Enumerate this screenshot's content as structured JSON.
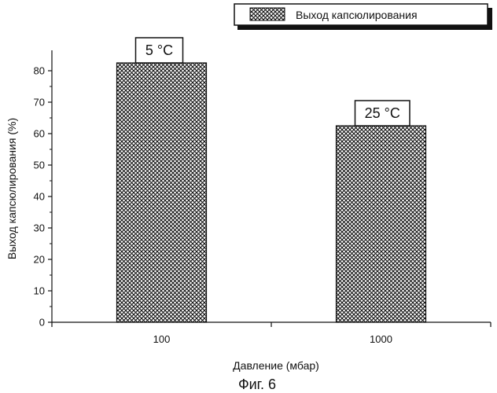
{
  "chart_data": {
    "type": "bar",
    "categories": [
      "100",
      "1000"
    ],
    "series": [
      {
        "name": "Выход капсюлирования",
        "values": [
          82.5,
          62.5
        ]
      }
    ],
    "bar_labels": [
      "5 °C",
      "25 °C"
    ],
    "xlabel": "Давление (мбар)",
    "ylabel": "Выход капсюлирования (%)",
    "ylim": [
      0,
      87
    ],
    "yticks": [
      0,
      10,
      20,
      30,
      40,
      50,
      60,
      70,
      80
    ],
    "grid": false,
    "legend": "top-right",
    "bar_fill": "crosshatch"
  },
  "caption": "Фиг. 6"
}
